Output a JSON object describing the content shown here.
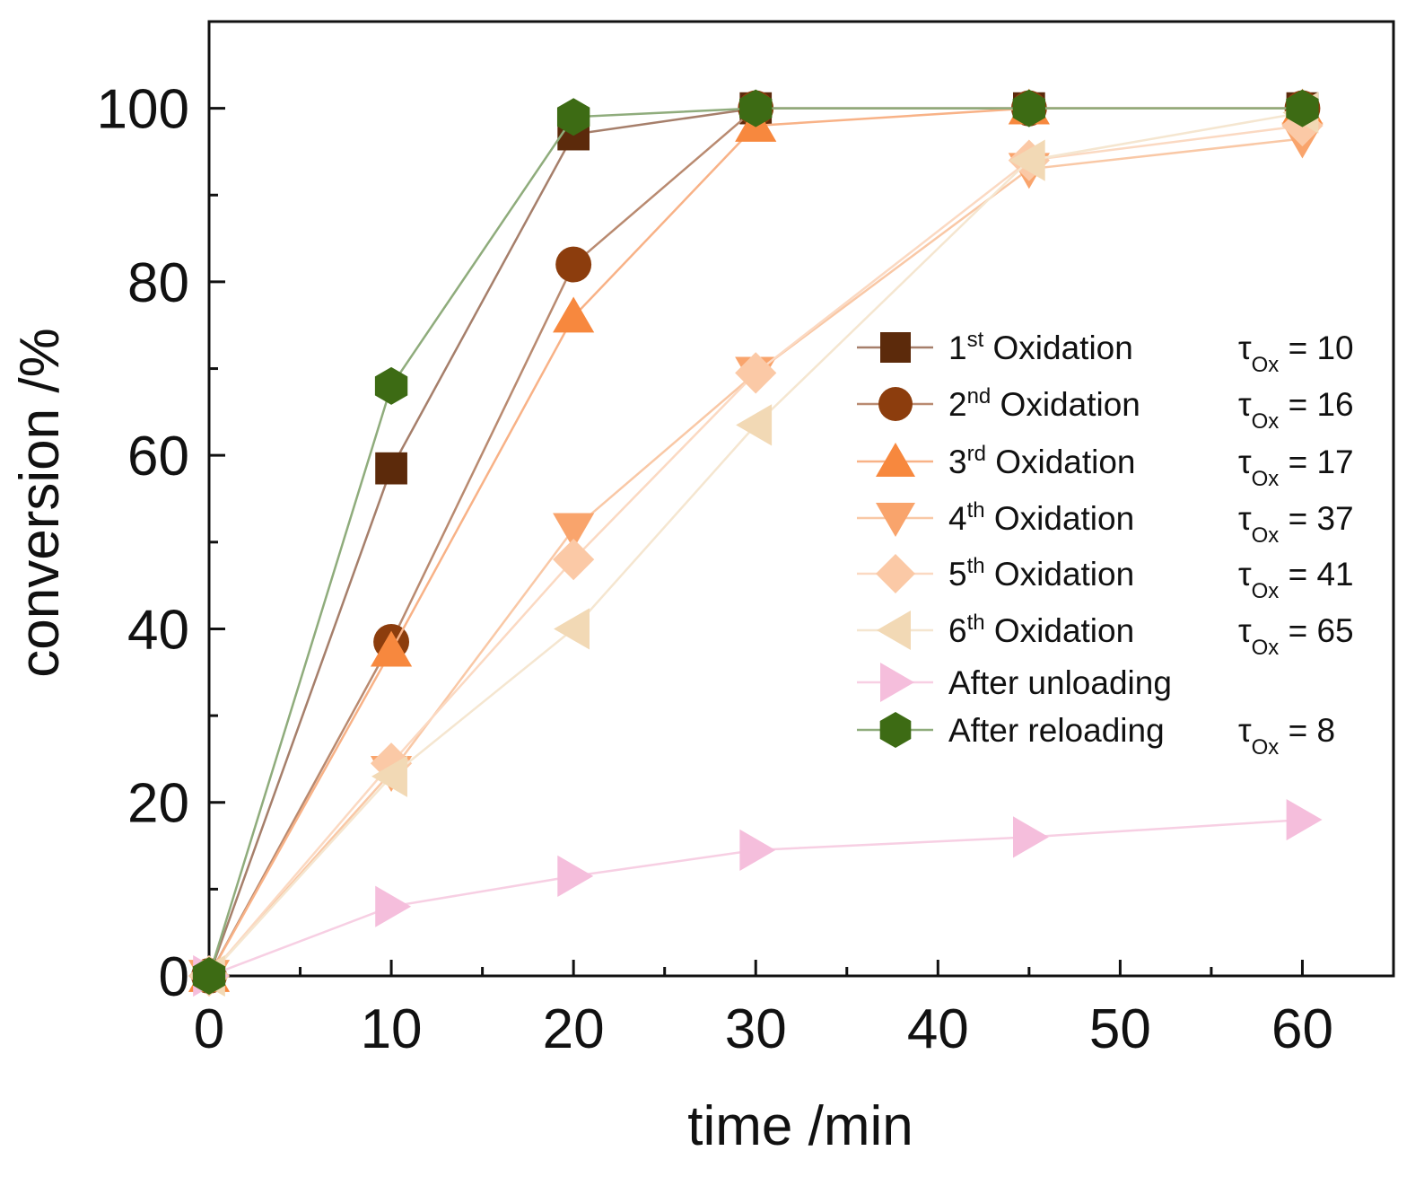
{
  "chart_data": {
    "type": "line",
    "xlabel": "time /min",
    "ylabel": "conversion /%",
    "xlim": [
      0,
      65
    ],
    "ylim": [
      0,
      110
    ],
    "xticks": [
      0,
      10,
      20,
      30,
      40,
      50,
      60
    ],
    "yticks": [
      0,
      20,
      40,
      60,
      80,
      100
    ],
    "x_tick_labels": [
      "0",
      "10",
      "20",
      "30",
      "40",
      "50",
      "60"
    ],
    "y_tick_labels": [
      "0",
      "20",
      "40",
      "60",
      "80",
      "100"
    ],
    "x": [
      0,
      10,
      20,
      30,
      45,
      60
    ],
    "grid": false,
    "legend_position": "right",
    "series": [
      {
        "name": "1st Oxidation",
        "ordinal": "1",
        "suffix": "st",
        "rest": " Oxidation",
        "tau_symbol": "τ",
        "tau_sub": "Ox",
        "tau_value": " = 10",
        "marker": "square",
        "color": "#5c2a0b",
        "line_color": "#a67f6b",
        "values": [
          0,
          58.5,
          97,
          100,
          100,
          100
        ]
      },
      {
        "name": "2nd Oxidation",
        "ordinal": "2",
        "suffix": "nd",
        "rest": " Oxidation",
        "tau_symbol": "τ",
        "tau_sub": "Ox",
        "tau_value": " = 16",
        "marker": "circle",
        "color": "#8c3d0d",
        "line_color": "#b98a70",
        "values": [
          0,
          38.5,
          82,
          100,
          100,
          100
        ]
      },
      {
        "name": "3rd Oxidation",
        "ordinal": "3",
        "suffix": "rd",
        "rest": " Oxidation",
        "tau_symbol": "τ",
        "tau_sub": "Ox",
        "tau_value": " = 17",
        "marker": "triangle-up",
        "color": "#f7883e",
        "line_color": "#f8b287",
        "values": [
          0,
          37.5,
          76,
          98,
          100,
          100
        ]
      },
      {
        "name": "4th Oxidation",
        "ordinal": "4",
        "suffix": "th",
        "rest": " Oxidation",
        "tau_symbol": "τ",
        "tau_sub": "Ox",
        "tau_value": " = 37",
        "marker": "triangle-down",
        "color": "#f9a46c",
        "line_color": "#f9c8a6",
        "values": [
          0,
          23.5,
          51.5,
          69.5,
          93,
          96.5
        ]
      },
      {
        "name": "5th Oxidation",
        "ordinal": "5",
        "suffix": "th",
        "rest": " Oxidation",
        "tau_symbol": "τ",
        "tau_sub": "Ox",
        "tau_value": " = 41",
        "marker": "diamond",
        "color": "#fbc9a6",
        "line_color": "#fbd9c2",
        "values": [
          0,
          24.5,
          48,
          69.5,
          94,
          98
        ]
      },
      {
        "name": "6th Oxidation",
        "ordinal": "6",
        "suffix": "th",
        "rest": " Oxidation",
        "tau_symbol": "τ",
        "tau_sub": "Ox",
        "tau_value": " = 65",
        "marker": "triangle-left",
        "color": "#f2d9b5",
        "line_color": "#f5e6d0",
        "values": [
          0,
          23,
          40,
          63.5,
          94,
          99.5
        ]
      },
      {
        "name": "After unloading",
        "ordinal": "",
        "suffix": "",
        "rest": "After unloading",
        "tau_symbol": "",
        "tau_sub": "",
        "tau_value": "",
        "marker": "triangle-right",
        "color": "#f5bedc",
        "line_color": "#f7cfe3",
        "values": [
          0,
          8,
          11.5,
          14.5,
          16,
          18
        ]
      },
      {
        "name": "After reloading",
        "ordinal": "",
        "suffix": "",
        "rest": "After reloading",
        "tau_symbol": "τ",
        "tau_sub": "Ox",
        "tau_value": " = 8",
        "marker": "hexagon",
        "color": "#3d6b14",
        "line_color": "#8fac7c",
        "values": [
          0,
          68,
          99,
          100,
          100,
          100
        ]
      }
    ]
  }
}
